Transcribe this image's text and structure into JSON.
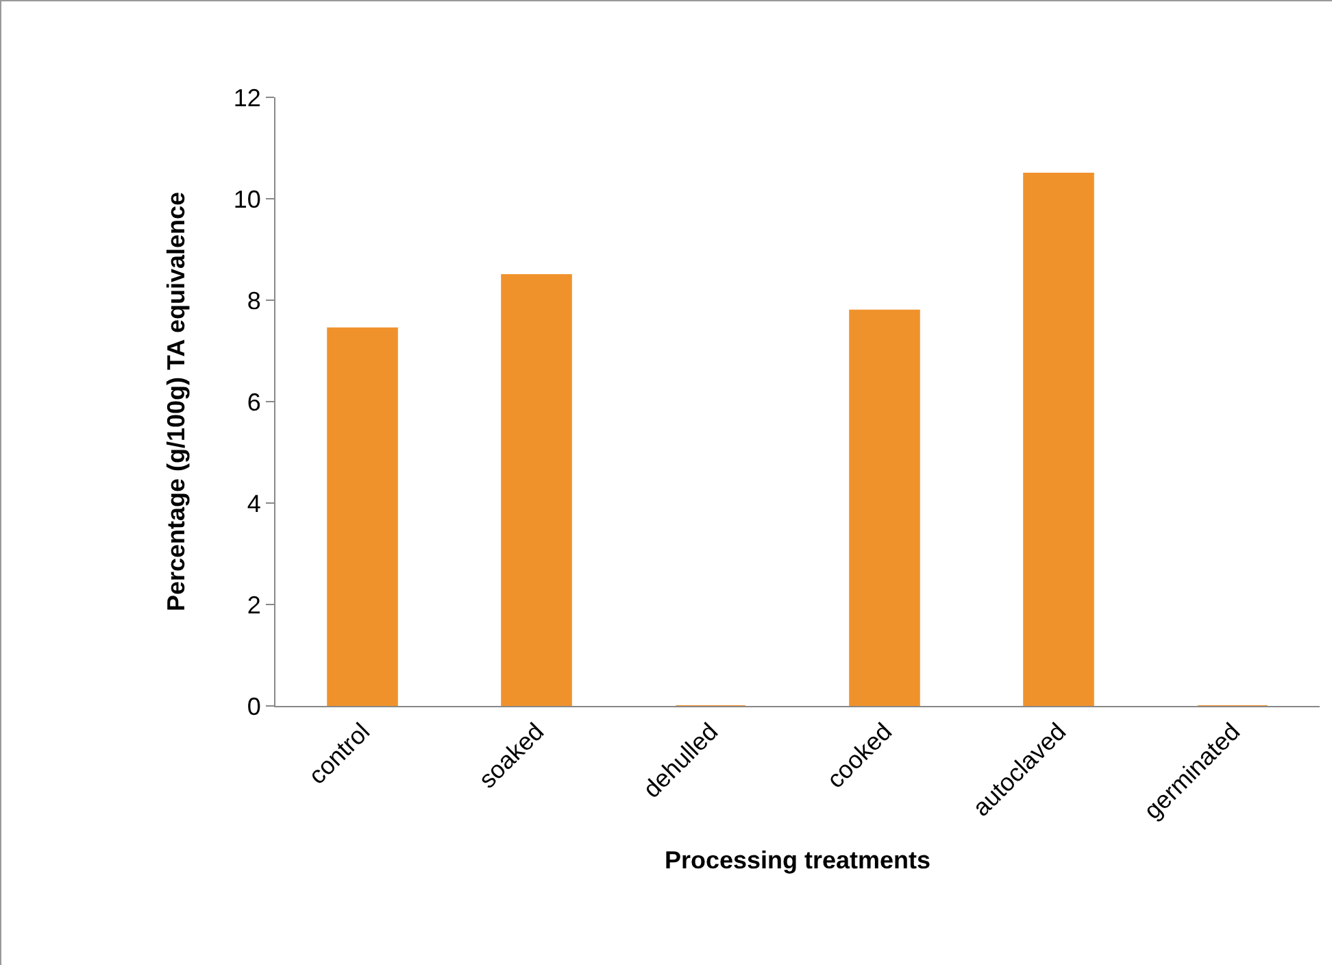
{
  "chart_data": {
    "type": "bar",
    "xlabel": "Processing treatments",
    "ylabel": "Percentage (g/100g) TA equivalence",
    "categories": [
      "control",
      "soaked",
      "dehulled",
      "cooked",
      "autoclaved",
      "germinated"
    ],
    "values": [
      7.45,
      8.5,
      0,
      7.8,
      10.5,
      0
    ],
    "color": "#f0922c",
    "ylim": [
      0,
      12
    ],
    "yticks": [
      0,
      2,
      4,
      6,
      8,
      10,
      12
    ],
    "grid": false,
    "legend": false
  }
}
